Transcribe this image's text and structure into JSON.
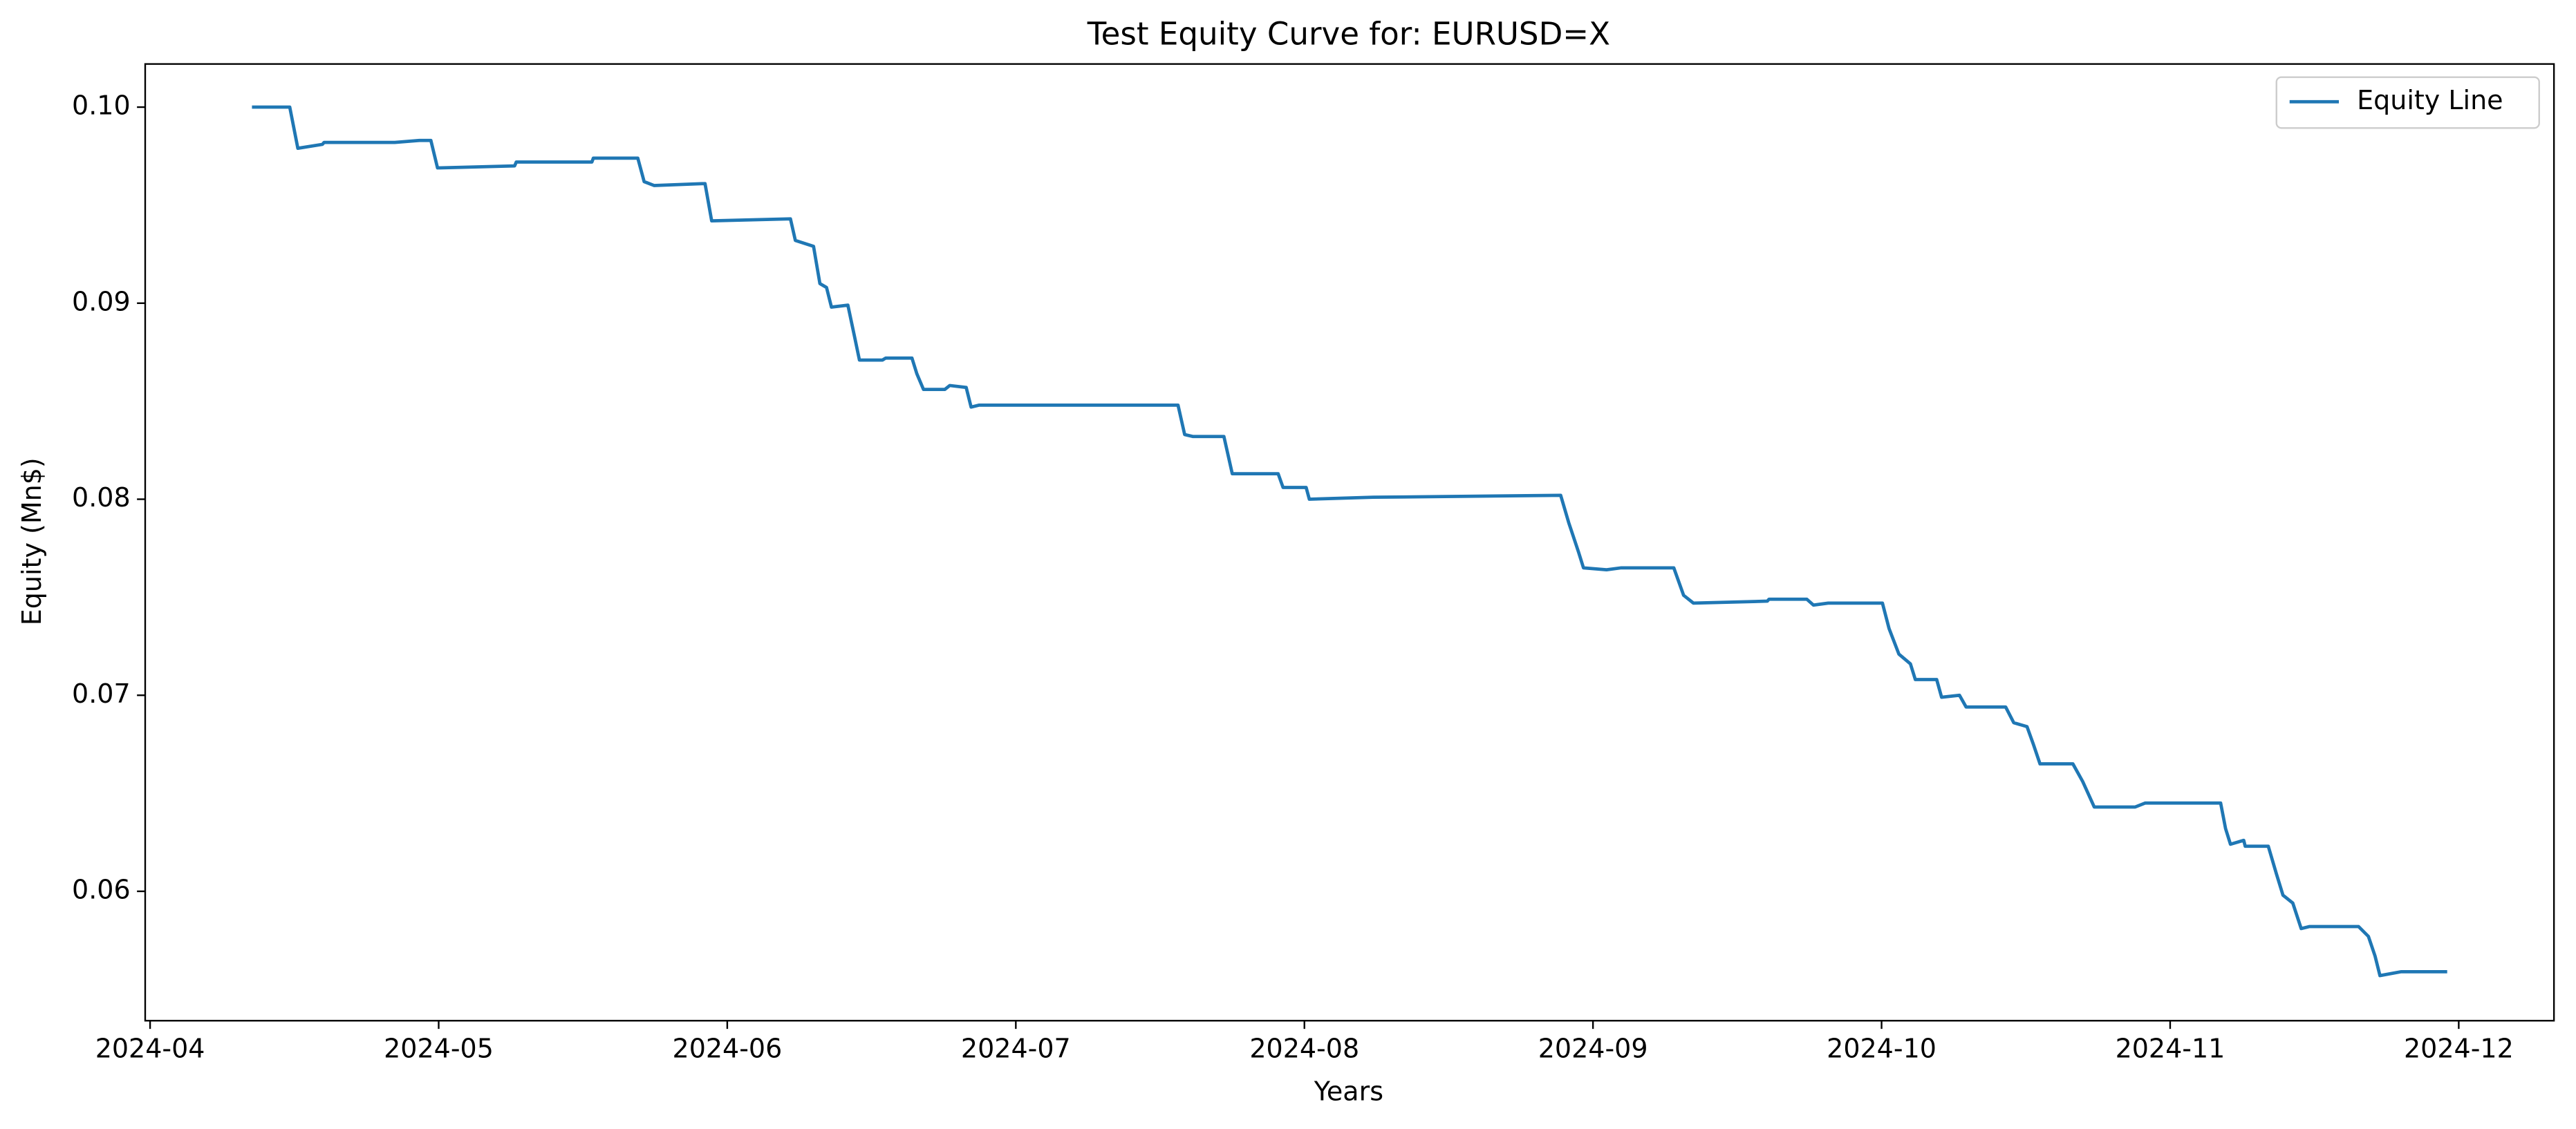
{
  "chart_data": {
    "type": "line",
    "title": "Test Equity Curve for: EURUSD=X",
    "x_label": "Years",
    "y_label": "Equity (Mn$)",
    "legend": "upper right",
    "grid": false,
    "xlim": [
      3.983,
      12.33
    ],
    "xticks": [
      {
        "value": 4,
        "label": "2024-04"
      },
      {
        "value": 5,
        "label": "2024-05"
      },
      {
        "value": 6,
        "label": "2024-06"
      },
      {
        "value": 7,
        "label": "2024-07"
      },
      {
        "value": 8,
        "label": "2024-08"
      },
      {
        "value": 9,
        "label": "2024-09"
      },
      {
        "value": 10,
        "label": "2024-10"
      },
      {
        "value": 11,
        "label": "2024-11"
      },
      {
        "value": 12,
        "label": "2024-12"
      }
    ],
    "ylim": [
      0.0534,
      0.1022
    ],
    "yticks": [
      0.06,
      0.07,
      0.08,
      0.09,
      {
        "value": 0.1,
        "label": "0.10"
      }
    ],
    "x": [
      4.353,
      4.484,
      4.512,
      4.597,
      4.603,
      4.848,
      4.933,
      4.973,
      4.996,
      5.263,
      5.269,
      5.531,
      5.536,
      5.69,
      5.712,
      5.747,
      5.923,
      5.946,
      6.219,
      6.236,
      6.299,
      6.321,
      6.344,
      6.361,
      6.418,
      6.441,
      6.458,
      6.538,
      6.549,
      6.64,
      6.657,
      6.68,
      6.754,
      6.771,
      6.828,
      6.845,
      6.873,
      7.562,
      7.585,
      7.613,
      7.721,
      7.75,
      7.909,
      7.926,
      8.006,
      8.017,
      8.239,
      8.888,
      8.916,
      8.95,
      8.967,
      9.047,
      9.098,
      9.28,
      9.314,
      9.348,
      9.604,
      9.61,
      9.741,
      9.764,
      9.815,
      10.003,
      10.026,
      10.06,
      10.1,
      10.117,
      10.191,
      10.208,
      10.27,
      10.293,
      10.43,
      10.458,
      10.504,
      10.526,
      10.549,
      10.663,
      10.697,
      10.737,
      10.879,
      10.913,
      11.175,
      11.192,
      11.209,
      11.255,
      11.26,
      11.34,
      11.368,
      11.391,
      11.425,
      11.454,
      11.482,
      11.653,
      11.687,
      11.71,
      11.727,
      11.801,
      11.96
    ],
    "series": [
      {
        "name": "Equity Line",
        "color": "#1f77b4",
        "values": [
          0.1,
          0.1,
          0.0979,
          0.0981,
          0.0982,
          0.0982,
          0.0983,
          0.0983,
          0.0969,
          0.097,
          0.0972,
          0.0972,
          0.0974,
          0.0974,
          0.0962,
          0.096,
          0.0961,
          0.0942,
          0.0943,
          0.0932,
          0.0929,
          0.091,
          0.0908,
          0.0898,
          0.0899,
          0.0883,
          0.0871,
          0.0871,
          0.0872,
          0.0872,
          0.0864,
          0.0856,
          0.0856,
          0.0858,
          0.0857,
          0.0847,
          0.0848,
          0.0848,
          0.0833,
          0.0832,
          0.0832,
          0.0813,
          0.0813,
          0.0806,
          0.0806,
          0.08,
          0.0801,
          0.0802,
          0.0788,
          0.0773,
          0.0765,
          0.0764,
          0.0765,
          0.0765,
          0.0751,
          0.0747,
          0.0748,
          0.0749,
          0.0749,
          0.0746,
          0.0747,
          0.0747,
          0.0734,
          0.0721,
          0.0716,
          0.0708,
          0.0708,
          0.0699,
          0.07,
          0.0694,
          0.0694,
          0.0686,
          0.0684,
          0.0675,
          0.0665,
          0.0665,
          0.0656,
          0.0643,
          0.0643,
          0.0645,
          0.0645,
          0.0632,
          0.0624,
          0.0626,
          0.0623,
          0.0623,
          0.0609,
          0.0598,
          0.0594,
          0.0581,
          0.0582,
          0.0582,
          0.0577,
          0.0567,
          0.0557,
          0.0559,
          0.0559
        ]
      }
    ]
  }
}
